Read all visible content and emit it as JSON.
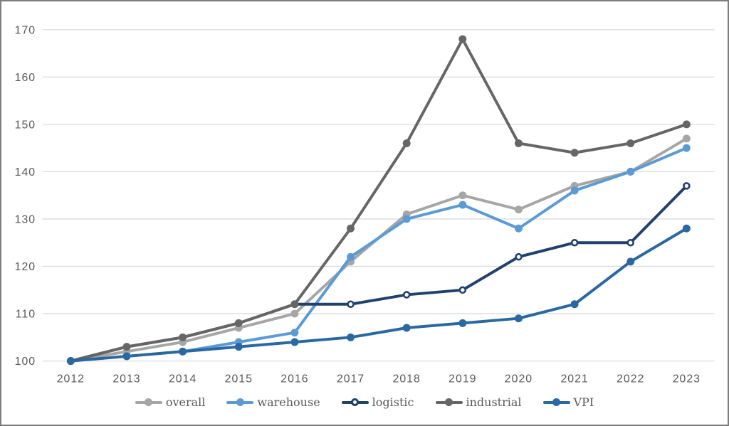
{
  "chart_data": {
    "type": "line",
    "title": "",
    "xlabel": "",
    "ylabel": "",
    "categories": [
      "2012",
      "2013",
      "2014",
      "2015",
      "2016",
      "2017",
      "2018",
      "2019",
      "2020",
      "2021",
      "2022",
      "2023"
    ],
    "series": [
      {
        "name": "overall",
        "color": "#a6a6a6",
        "marker": "filled",
        "values": [
          100,
          102,
          104,
          107,
          110,
          121,
          131,
          135,
          132,
          137,
          140,
          147
        ]
      },
      {
        "name": "warehouse",
        "color": "#5b9bd5",
        "marker": "filled",
        "values": [
          100,
          101,
          102,
          104,
          106,
          122,
          130,
          133,
          128,
          136,
          140,
          145
        ]
      },
      {
        "name": "logistic",
        "color": "#20406e",
        "marker": "open",
        "values": [
          100,
          103,
          105,
          108,
          112,
          112,
          114,
          115,
          122,
          125,
          125,
          137
        ]
      },
      {
        "name": "industrial",
        "color": "#666666",
        "marker": "filled",
        "values": [
          100,
          103,
          105,
          108,
          112,
          128,
          146,
          168,
          146,
          144,
          146,
          150
        ]
      },
      {
        "name": "VPI",
        "color": "#2a68a2",
        "marker": "filled",
        "values": [
          100,
          101,
          102,
          103,
          104,
          105,
          107,
          108,
          109,
          112,
          121,
          128
        ]
      }
    ],
    "ylim": [
      100,
      170
    ],
    "yticks": [
      100,
      110,
      120,
      130,
      140,
      150,
      160,
      170
    ],
    "grid": true,
    "legend_position": "bottom"
  },
  "style_colors": {
    "gridline": "#dbdbdb",
    "tick_label": "#595959",
    "legend_label": "#595959",
    "frame": "#7d7d7d",
    "background": "#ffffff"
  }
}
